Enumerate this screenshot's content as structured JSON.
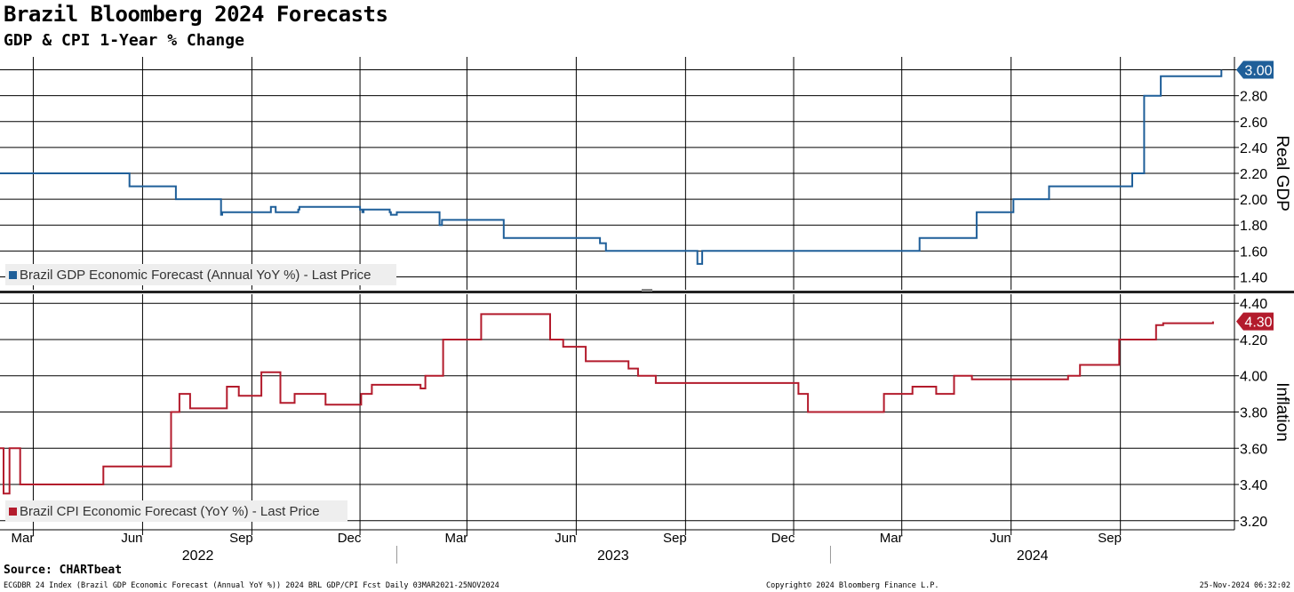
{
  "title": "Brazil Bloomberg 2024 Forecasts",
  "subtitle": "GDP & CPI 1-Year % Change",
  "source": "Source: CHARTbeat",
  "footer": {
    "left": "ECGDBR 24 Index (Brazil GDP Economic Forecast (Annual YoY %)) 2024 BRL GDP/CPI Fcst  Daily 03MAR2021-25NOV2024",
    "mid": "Copyright© 2024 Bloomberg Finance L.P.",
    "right": "25-Nov-2024 06:32:02"
  },
  "colors": {
    "gdp": "#1f5f99",
    "cpi": "#b31b2c",
    "grid": "#000000",
    "legend_bg": "#eeeeee"
  },
  "chart_data": [
    {
      "type": "line",
      "title": "",
      "ylabel": "Real GDP",
      "ylim": [
        1.3,
        3.1
      ],
      "yticks": [
        "1.40",
        "1.60",
        "1.80",
        "2.00",
        "2.20",
        "2.40",
        "2.60",
        "2.80",
        "3.00"
      ],
      "last_value_label": "3.00",
      "legend": "Brazil GDP Economic Forecast (Annual YoY %) - Last Price",
      "legend_position": "bottom-left",
      "series": [
        {
          "name": "Brazil GDP Economic Forecast (Annual YoY %) - Last Price",
          "x": [
            "2022-02-01",
            "2022-05-20",
            "2022-05-21",
            "2022-06-28",
            "2022-06-29",
            "2022-08-05",
            "2022-08-06",
            "2022-08-07",
            "2022-09-15",
            "2022-09-17",
            "2022-09-21",
            "2022-10-10",
            "2022-10-11",
            "2022-12-01",
            "2022-12-03",
            "2022-12-04",
            "2022-12-26",
            "2022-12-27",
            "2023-01-01",
            "2023-02-05",
            "2023-02-06",
            "2023-02-08",
            "2023-03-31",
            "2023-04-01",
            "2023-06-18",
            "2023-06-21",
            "2023-06-26",
            "2023-09-09",
            "2023-09-11",
            "2023-09-14",
            "2023-09-15",
            "2023-10-01",
            "2024-03-14",
            "2024-03-16",
            "2024-05-01",
            "2024-05-03",
            "2024-06-02",
            "2024-06-03",
            "2024-07-01",
            "2024-07-03",
            "2024-09-07",
            "2024-09-11",
            "2024-09-19",
            "2024-09-21",
            "2024-10-01",
            "2024-10-05",
            "2024-11-25"
          ],
          "values": [
            2.2,
            2.2,
            2.1,
            2.1,
            2.0,
            2.0,
            1.88,
            1.9,
            1.9,
            1.94,
            1.9,
            1.92,
            1.94,
            1.92,
            1.9,
            1.92,
            1.9,
            1.88,
            1.9,
            1.9,
            1.8,
            1.84,
            1.84,
            1.7,
            1.7,
            1.66,
            1.6,
            1.6,
            1.5,
            1.5,
            1.6,
            1.6,
            1.6,
            1.7,
            1.7,
            1.9,
            1.9,
            2.0,
            2.0,
            2.1,
            2.1,
            2.2,
            2.2,
            2.8,
            2.8,
            2.95,
            3.0
          ]
        }
      ]
    },
    {
      "type": "line",
      "title": "",
      "ylabel": "Inflation",
      "ylim": [
        3.15,
        4.45
      ],
      "yticks": [
        "3.20",
        "3.40",
        "3.60",
        "3.80",
        "4.00",
        "4.20",
        "4.40"
      ],
      "last_value_label": "4.30",
      "legend": "Brazil CPI Economic Forecast (YoY %) - Last Price",
      "legend_position": "bottom-left",
      "series": [
        {
          "name": "Brazil CPI Economic Forecast (YoY %) - Last Price",
          "x": [
            "2022-02-01",
            "2022-02-03",
            "2022-02-04",
            "2022-02-08",
            "2022-02-09",
            "2022-02-17",
            "2022-02-18",
            "2022-04-28",
            "2022-04-29",
            "2022-06-24",
            "2022-06-25",
            "2022-07-01",
            "2022-07-02",
            "2022-07-10",
            "2022-07-11",
            "2022-08-10",
            "2022-08-11",
            "2022-08-20",
            "2022-08-21",
            "2022-09-08",
            "2022-09-09",
            "2022-09-24",
            "2022-09-25",
            "2022-10-06",
            "2022-10-07",
            "2022-11-01",
            "2022-11-02",
            "2022-12-01",
            "2022-12-02",
            "2022-12-10",
            "2022-12-11",
            "2023-01-20",
            "2023-01-21",
            "2023-01-25",
            "2023-02-01",
            "2023-02-08",
            "2023-02-09",
            "2023-03-04",
            "2023-03-05",
            "2023-03-12",
            "2023-03-13",
            "2023-05-09",
            "2023-05-10",
            "2023-05-20",
            "2023-05-21",
            "2023-06-08",
            "2023-06-09",
            "2023-07-14",
            "2023-07-15",
            "2023-07-22",
            "2023-07-23",
            "2023-08-06",
            "2023-08-07",
            "2023-12-04",
            "2023-12-05",
            "2023-12-12",
            "2023-12-13",
            "2024-02-14",
            "2024-02-15",
            "2024-03-09",
            "2024-03-10",
            "2024-03-29",
            "2024-03-30",
            "2024-04-13",
            "2024-04-14",
            "2024-04-28",
            "2024-04-29",
            "2024-07-18",
            "2024-07-19",
            "2024-07-28",
            "2024-07-29",
            "2024-08-30",
            "2024-08-31",
            "2024-09-30",
            "2024-10-01",
            "2024-10-06",
            "2024-10-07",
            "2024-11-18"
          ],
          "values": [
            3.6,
            3.6,
            3.35,
            3.35,
            3.6,
            3.6,
            3.4,
            3.4,
            3.5,
            3.5,
            3.8,
            3.8,
            3.9,
            3.9,
            3.82,
            3.82,
            3.94,
            3.94,
            3.89,
            3.89,
            4.02,
            4.02,
            3.85,
            3.85,
            3.9,
            3.9,
            3.84,
            3.84,
            3.9,
            3.9,
            3.95,
            3.95,
            3.93,
            4.0,
            4.0,
            4.0,
            4.2,
            4.2,
            4.2,
            4.2,
            4.34,
            4.34,
            4.2,
            4.2,
            4.16,
            4.16,
            4.08,
            4.08,
            4.04,
            4.04,
            4.0,
            4.0,
            3.96,
            3.96,
            3.9,
            3.9,
            3.8,
            3.8,
            3.9,
            3.9,
            3.94,
            3.94,
            3.9,
            3.9,
            4.0,
            4.0,
            3.98,
            3.98,
            4.0,
            4.0,
            4.06,
            4.06,
            4.2,
            4.2,
            4.28,
            4.28,
            4.29,
            4.3
          ]
        }
      ]
    }
  ],
  "x_axis": {
    "start": "2022-02-01",
    "end": "2024-12-06",
    "month_ticks": [
      {
        "date": "2022-03-01",
        "label": "Mar"
      },
      {
        "date": "2022-06-01",
        "label": "Jun"
      },
      {
        "date": "2022-09-01",
        "label": "Sep"
      },
      {
        "date": "2022-12-01",
        "label": "Dec"
      },
      {
        "date": "2023-03-01",
        "label": "Mar"
      },
      {
        "date": "2023-06-01",
        "label": "Jun"
      },
      {
        "date": "2023-09-01",
        "label": "Sep"
      },
      {
        "date": "2023-12-01",
        "label": "Dec"
      },
      {
        "date": "2024-03-01",
        "label": "Mar"
      },
      {
        "date": "2024-06-01",
        "label": "Jun"
      },
      {
        "date": "2024-09-01",
        "label": "Sep"
      }
    ],
    "years": [
      {
        "label": "2022",
        "from": "2022-02-01",
        "to": "2022-12-31"
      },
      {
        "label": "2023",
        "from": "2023-01-01",
        "to": "2023-12-31"
      },
      {
        "label": "2024",
        "from": "2024-01-01",
        "to": "2024-12-06"
      }
    ]
  }
}
